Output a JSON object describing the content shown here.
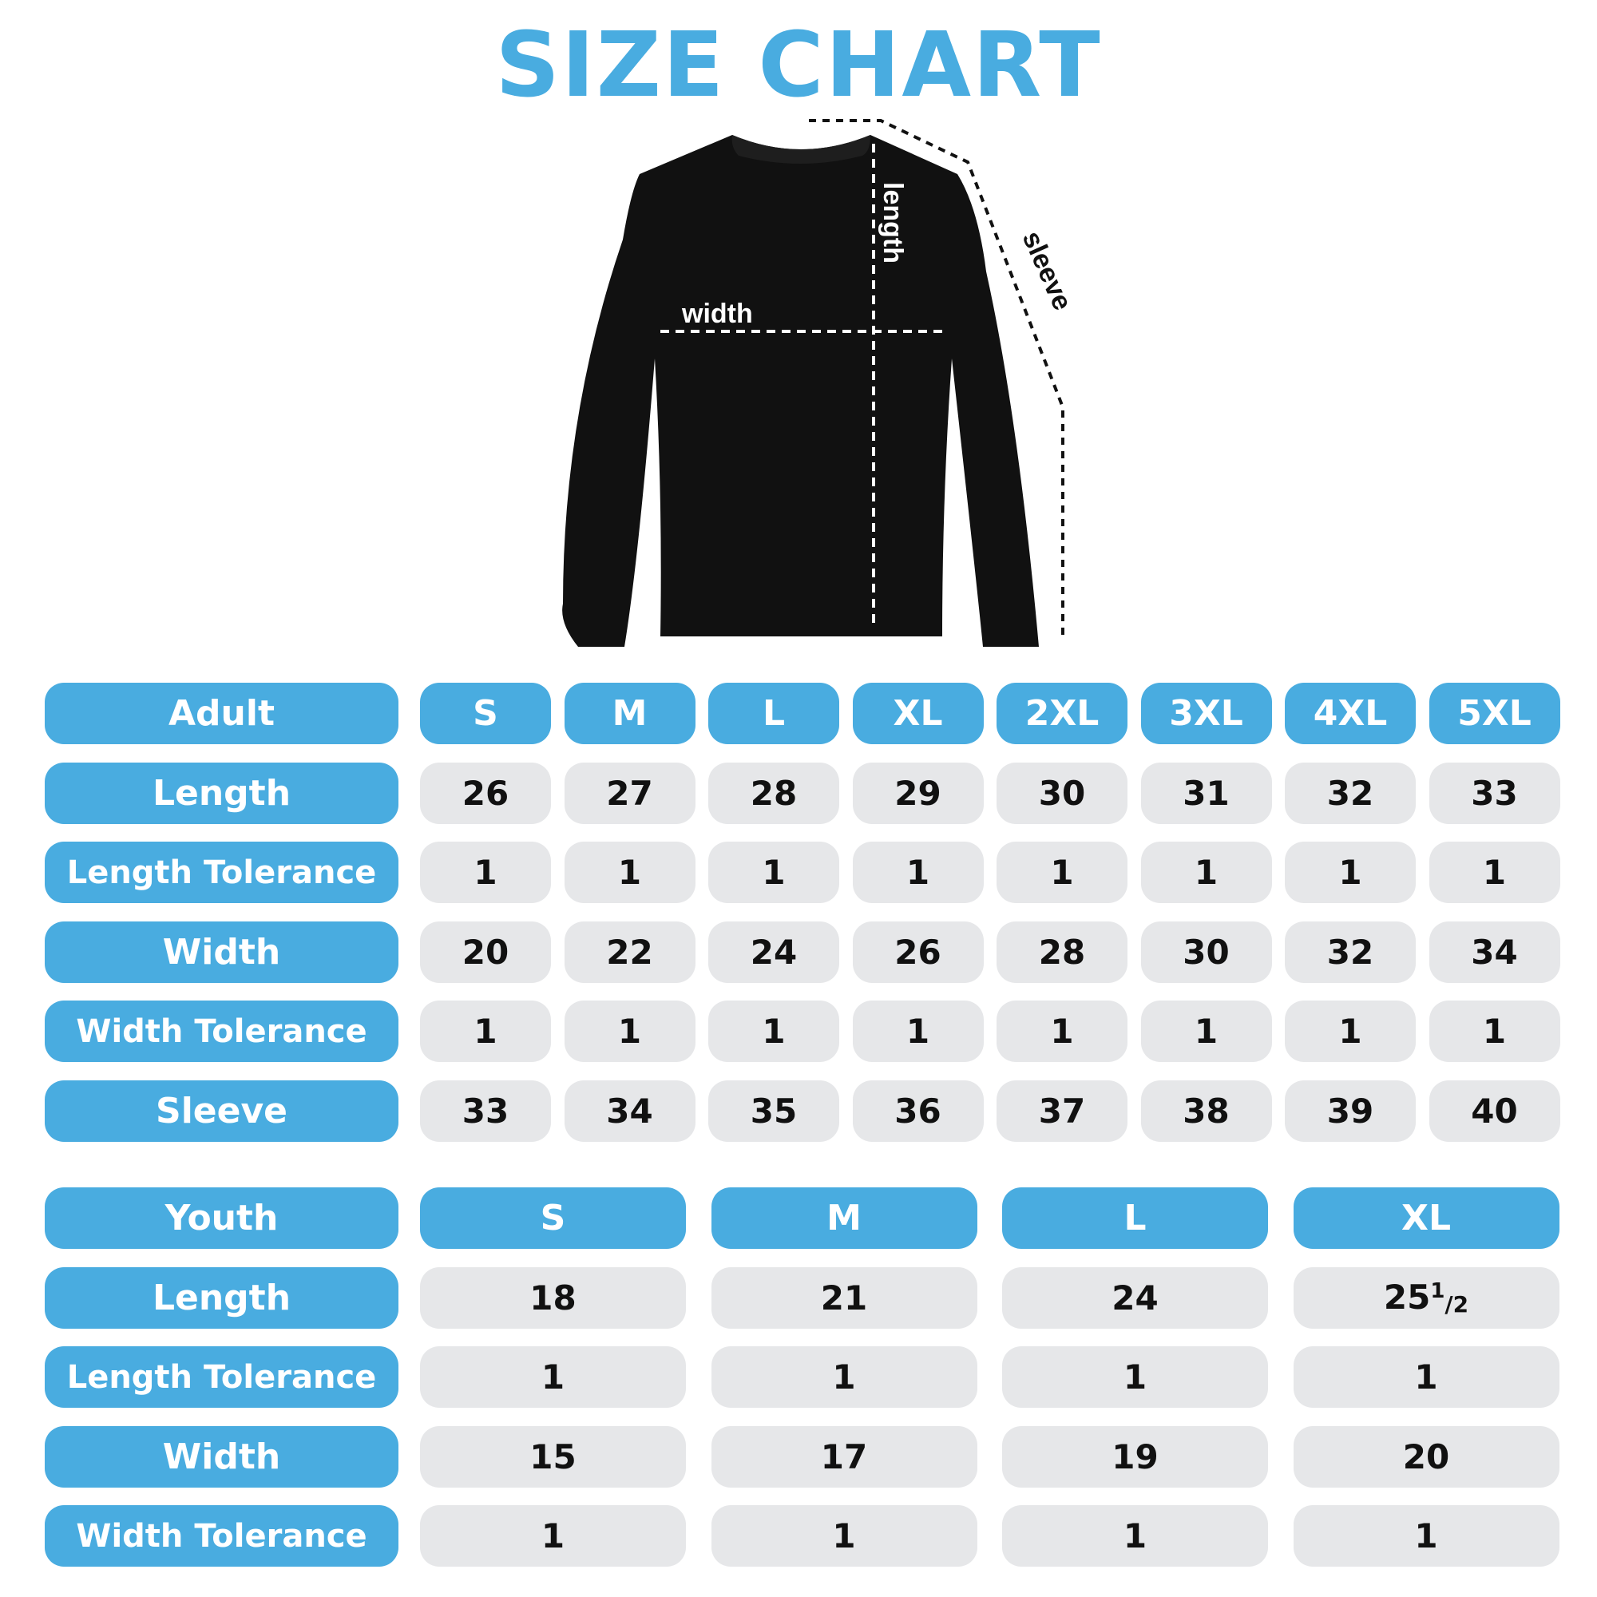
{
  "title": "SIZE CHART",
  "diagram": {
    "width_label": "width",
    "length_label": "length",
    "sleeve_label": "sleeve"
  },
  "colors": {
    "accent": "#49ACE0",
    "cell": "#E6E7E9",
    "garment": "#111111"
  },
  "adult": {
    "header": "Adult",
    "sizes": [
      "S",
      "M",
      "L",
      "XL",
      "2XL",
      "3XL",
      "4XL",
      "5XL"
    ],
    "rows": [
      {
        "label": "Length",
        "values": [
          "26",
          "27",
          "28",
          "29",
          "30",
          "31",
          "32",
          "33"
        ]
      },
      {
        "label": "Length Tolerance",
        "values": [
          "1",
          "1",
          "1",
          "1",
          "1",
          "1",
          "1",
          "1"
        ]
      },
      {
        "label": "Width",
        "values": [
          "20",
          "22",
          "24",
          "26",
          "28",
          "30",
          "32",
          "34"
        ]
      },
      {
        "label": "Width Tolerance",
        "values": [
          "1",
          "1",
          "1",
          "1",
          "1",
          "1",
          "1",
          "1"
        ]
      },
      {
        "label": "Sleeve",
        "values": [
          "33",
          "34",
          "35",
          "36",
          "37",
          "38",
          "39",
          "40"
        ]
      }
    ]
  },
  "youth": {
    "header": "Youth",
    "sizes": [
      "S",
      "M",
      "L",
      "XL"
    ],
    "rows": [
      {
        "label": "Length",
        "values": [
          "18",
          "21",
          "24",
          {
            "whole": "25",
            "num": "1",
            "den": "2"
          }
        ]
      },
      {
        "label": "Length Tolerance",
        "values": [
          "1",
          "1",
          "1",
          "1"
        ]
      },
      {
        "label": "Width",
        "values": [
          "15",
          "17",
          "19",
          "20"
        ]
      },
      {
        "label": "Width Tolerance",
        "values": [
          "1",
          "1",
          "1",
          "1"
        ]
      }
    ]
  }
}
